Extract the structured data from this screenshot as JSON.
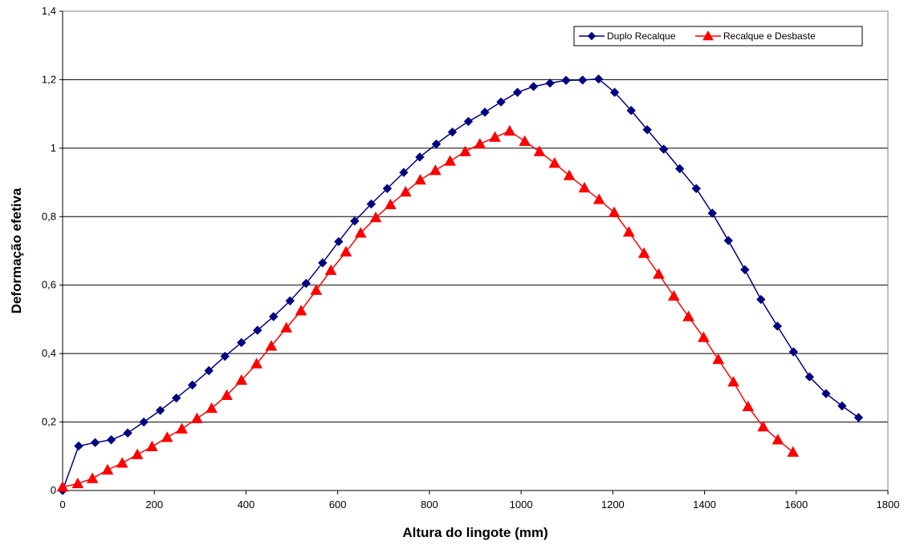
{
  "chart_data": {
    "type": "line",
    "title": "",
    "xlabel": "Altura do lingote (mm)",
    "ylabel": "Deformação efetiva",
    "xlim": [
      0,
      1800
    ],
    "ylim": [
      0,
      1.4
    ],
    "xticks": [
      0,
      200,
      400,
      600,
      800,
      1000,
      1200,
      1400,
      1600,
      1800
    ],
    "yticks": [
      0,
      0.2,
      0.4,
      0.6,
      0.8,
      1,
      1.2,
      1.4
    ],
    "x_tick_labels": [
      "0",
      "200",
      "400",
      "600",
      "800",
      "1000",
      "1200",
      "1400",
      "1600",
      "1800"
    ],
    "y_tick_labels": [
      "0",
      "0,2",
      "0,4",
      "0,6",
      "0,8",
      "1",
      "1,2",
      "1,4"
    ],
    "grid": "horizontal",
    "legend_position": "top-right",
    "series": [
      {
        "name": "Duplo Recalque",
        "color": "#000080",
        "marker": "diamond",
        "x": [
          0,
          35,
          71,
          106,
          142,
          177,
          213,
          248,
          283,
          319,
          354,
          390,
          425,
          460,
          496,
          531,
          567,
          602,
          637,
          673,
          708,
          744,
          779,
          815,
          850,
          885,
          921,
          956,
          992,
          1027,
          1063,
          1098,
          1134,
          1169,
          1204,
          1240,
          1275,
          1311,
          1346,
          1382,
          1417,
          1452,
          1488,
          1523,
          1559,
          1594,
          1629,
          1665,
          1700,
          1736
        ],
        "y": [
          0,
          0.13,
          0.14,
          0.148,
          0.168,
          0.2,
          0.234,
          0.27,
          0.308,
          0.35,
          0.392,
          0.432,
          0.468,
          0.508,
          0.554,
          0.605,
          0.665,
          0.727,
          0.787,
          0.837,
          0.882,
          0.929,
          0.974,
          1.012,
          1.047,
          1.078,
          1.105,
          1.135,
          1.163,
          1.18,
          1.19,
          1.198,
          1.199,
          1.202,
          1.163,
          1.11,
          1.054,
          0.997,
          0.94,
          0.882,
          0.81,
          0.73,
          0.645,
          0.558,
          0.48,
          0.405,
          0.332,
          0.283,
          0.247,
          0.213
        ]
      },
      {
        "name": "Recalque e Desbaste",
        "color": "#ff0000",
        "marker": "triangle",
        "x": [
          0,
          33,
          65,
          98,
          130,
          163,
          195,
          228,
          260,
          293,
          325,
          358,
          390,
          423,
          455,
          488,
          520,
          553,
          585,
          618,
          650,
          683,
          715,
          748,
          780,
          813,
          845,
          878,
          910,
          943,
          975,
          1008,
          1040,
          1073,
          1105,
          1138,
          1170,
          1203,
          1235,
          1268,
          1300,
          1333,
          1365,
          1398,
          1430,
          1463,
          1495,
          1528,
          1560,
          1593
        ],
        "y": [
          0.01,
          0.02,
          0.035,
          0.06,
          0.08,
          0.105,
          0.128,
          0.155,
          0.18,
          0.21,
          0.24,
          0.278,
          0.322,
          0.37,
          0.422,
          0.475,
          0.525,
          0.585,
          0.643,
          0.697,
          0.752,
          0.797,
          0.835,
          0.872,
          0.907,
          0.935,
          0.962,
          0.99,
          1.012,
          1.032,
          1.05,
          1.02,
          0.99,
          0.956,
          0.92,
          0.884,
          0.85,
          0.812,
          0.755,
          0.693,
          0.632,
          0.568,
          0.508,
          0.447,
          0.383,
          0.317,
          0.245,
          0.186,
          0.148,
          0.112
        ]
      }
    ]
  }
}
